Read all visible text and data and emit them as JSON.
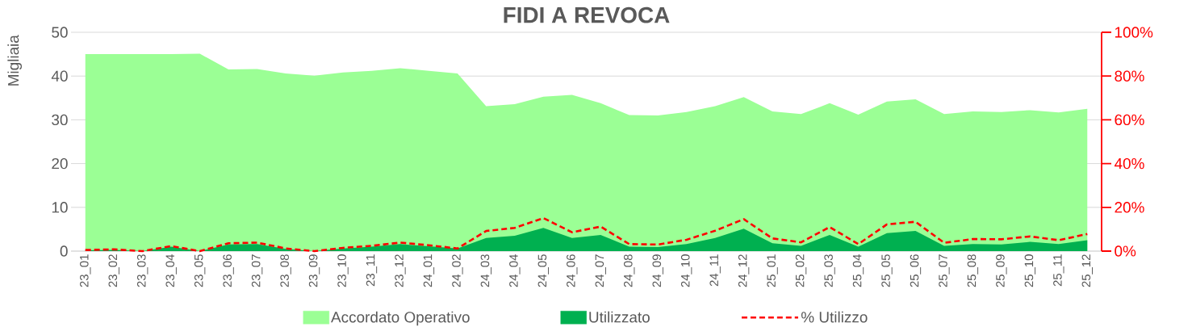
{
  "chart_data": {
    "type": "area",
    "title": "FIDI A REVOCA",
    "ylabel": "Migliaia",
    "categories": [
      "23_01",
      "23_02",
      "23_03",
      "23_04",
      "23_05",
      "23_06",
      "23_07",
      "23_08",
      "23_09",
      "23_10",
      "23_11",
      "23_12",
      "24_01",
      "24_02",
      "24_03",
      "24_04",
      "24_05",
      "24_06",
      "24_07",
      "24_08",
      "24_09",
      "24_10",
      "24_11",
      "24_12",
      "25_01",
      "25_02",
      "25_03",
      "25_04",
      "25_05",
      "25_06",
      "25_07",
      "25_08",
      "25_09",
      "25_10",
      "25_11",
      "25_12"
    ],
    "series": [
      {
        "name": "Accordato Operativo",
        "color": "#9bff95",
        "values": [
          45,
          45,
          45,
          45,
          45.1,
          41.5,
          41.6,
          40.6,
          40.1,
          40.8,
          41.2,
          41.8,
          41.2,
          40.6,
          33.1,
          33.6,
          35.3,
          35.7,
          33.8,
          31.1,
          31.0,
          31.8,
          33.1,
          35.2,
          31.9,
          31.3,
          33.8,
          31.2,
          34.2,
          34.7,
          31.3,
          31.9,
          31.8,
          32.2,
          31.7,
          32.5
        ]
      },
      {
        "name": "Utilizzato",
        "color": "#00b050",
        "values": [
          0.2,
          0.3,
          0,
          1.0,
          0,
          1.5,
          1.6,
          0.5,
          0,
          0.6,
          1.0,
          1.6,
          1.1,
          0.6,
          3.0,
          3.5,
          5.3,
          3.0,
          3.7,
          1.0,
          0.9,
          1.6,
          3.0,
          5.1,
          1.8,
          1.2,
          3.7,
          1.0,
          4.1,
          4.6,
          1.2,
          1.6,
          1.5,
          2.1,
          1.6,
          2.5
        ]
      },
      {
        "name": "% Utilizzo",
        "type": "line",
        "axis": "y2",
        "line_style": "dashed",
        "color": "#ff0000",
        "values": [
          0.5,
          0.8,
          0,
          2.3,
          0,
          3.6,
          3.9,
          1.2,
          0,
          1.5,
          2.4,
          3.9,
          2.7,
          1.2,
          9.2,
          10.6,
          15.1,
          8.6,
          11.2,
          3.2,
          3.0,
          5.2,
          9.3,
          14.6,
          5.8,
          4.0,
          11.0,
          3.2,
          12.2,
          13.4,
          3.8,
          5.5,
          5.4,
          6.7,
          5.0,
          7.8
        ]
      }
    ],
    "ylim": [
      0,
      50
    ],
    "yticks": [
      0,
      10,
      20,
      30,
      40,
      50
    ],
    "y2lim": [
      0,
      100
    ],
    "y2ticks": [
      {
        "value": 0,
        "label": "0%"
      },
      {
        "value": 20,
        "label": "20%"
      },
      {
        "value": 40,
        "label": "40%"
      },
      {
        "value": 60,
        "label": "60%"
      },
      {
        "value": 80,
        "label": "80%"
      },
      {
        "value": 100,
        "label": "100%"
      }
    ],
    "grid": "y",
    "legend": "bottom"
  }
}
